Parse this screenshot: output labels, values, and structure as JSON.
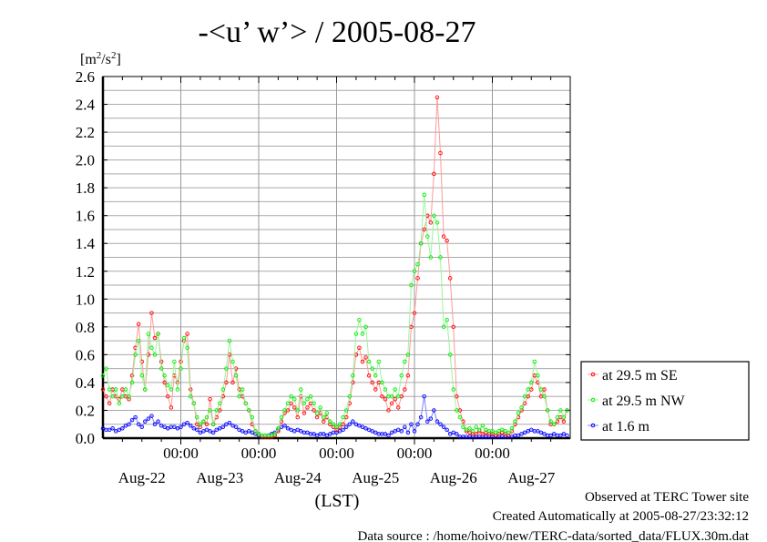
{
  "chart_data": {
    "type": "line",
    "title": "-<u’ w’> / 2005-08-27",
    "ylabel_base": "[m",
    "ylabel_sup1": "2",
    "ylabel_mid": "/s",
    "ylabel_sup2": "2",
    "ylabel_end": "]",
    "xlabel": "(LST)",
    "ylim": [
      0,
      2.6
    ],
    "yticks": [
      "0.0",
      "0.2",
      "0.4",
      "0.6",
      "0.8",
      "1.0",
      "1.2",
      "1.4",
      "1.6",
      "1.8",
      "2.0",
      "2.2",
      "2.4",
      "2.6"
    ],
    "x_time_labels": [
      "00:00",
      "00:00",
      "00:00",
      "00:00",
      "00:00"
    ],
    "x_day_labels": [
      "Aug-22",
      "Aug-23",
      "Aug-24",
      "Aug-25",
      "Aug-26",
      "Aug-27"
    ],
    "x_range_hours": [
      0,
      144
    ],
    "x_step_hours": 1,
    "grid": true,
    "legend_position": "right-bottom",
    "series": [
      {
        "name": "at 29.5 m SE",
        "color": "#ff0000",
        "values": [
          0.35,
          0.3,
          0.25,
          0.35,
          0.3,
          0.28,
          0.35,
          0.3,
          0.28,
          0.45,
          0.65,
          0.82,
          0.55,
          0.35,
          0.6,
          0.9,
          0.72,
          0.75,
          0.55,
          0.4,
          0.3,
          0.22,
          0.45,
          0.4,
          0.55,
          0.7,
          0.75,
          0.35,
          0.25,
          0.1,
          0.08,
          0.12,
          0.1,
          0.28,
          0.1,
          0.15,
          0.2,
          0.3,
          0.4,
          0.6,
          0.4,
          0.5,
          0.35,
          0.3,
          0.25,
          0.2,
          0.1,
          0.05,
          0.03,
          0.01,
          0.01,
          0.01,
          0.01,
          0.02,
          0.05,
          0.12,
          0.18,
          0.2,
          0.25,
          0.22,
          0.15,
          0.3,
          0.18,
          0.22,
          0.25,
          0.2,
          0.15,
          0.18,
          0.12,
          0.15,
          0.1,
          0.08,
          0.06,
          0.08,
          0.1,
          0.15,
          0.25,
          0.4,
          0.6,
          0.65,
          0.55,
          0.58,
          0.45,
          0.4,
          0.35,
          0.4,
          0.3,
          0.28,
          0.2,
          0.25,
          0.28,
          0.22,
          0.3,
          0.35,
          0.45,
          0.8,
          0.9,
          1.15,
          1.4,
          1.5,
          1.6,
          1.55,
          1.9,
          2.45,
          2.05,
          1.45,
          1.42,
          1.15,
          0.8,
          0.3,
          0.2,
          0.12,
          0.05,
          0.04,
          0.03,
          0.03,
          0.05,
          0.03,
          0.04,
          0.03,
          0.03,
          0.02,
          0.03,
          0.04,
          0.03,
          0.02,
          0.05,
          0.1,
          0.15,
          0.2,
          0.25,
          0.3,
          0.35,
          0.45,
          0.4,
          0.3,
          0.35,
          0.2,
          0.1,
          0.1,
          0.12,
          0.15,
          0.12,
          0.2
        ]
      },
      {
        "name": "at 29.5 m NW",
        "color": "#00ee00",
        "values": [
          0.45,
          0.5,
          0.35,
          0.3,
          0.35,
          0.25,
          0.3,
          0.35,
          0.3,
          0.4,
          0.6,
          0.7,
          0.45,
          0.35,
          0.75,
          0.65,
          0.6,
          0.75,
          0.5,
          0.45,
          0.38,
          0.35,
          0.55,
          0.35,
          0.5,
          0.72,
          0.65,
          0.3,
          0.25,
          0.15,
          0.1,
          0.12,
          0.15,
          0.2,
          0.1,
          0.2,
          0.25,
          0.35,
          0.5,
          0.7,
          0.55,
          0.45,
          0.3,
          0.35,
          0.25,
          0.2,
          0.15,
          0.05,
          0.03,
          0.02,
          0.02,
          0.02,
          0.02,
          0.03,
          0.07,
          0.15,
          0.2,
          0.25,
          0.3,
          0.28,
          0.2,
          0.35,
          0.25,
          0.28,
          0.3,
          0.25,
          0.18,
          0.22,
          0.15,
          0.18,
          0.12,
          0.1,
          0.08,
          0.1,
          0.15,
          0.2,
          0.3,
          0.45,
          0.75,
          0.85,
          0.75,
          0.8,
          0.55,
          0.5,
          0.45,
          0.55,
          0.4,
          0.35,
          0.3,
          0.3,
          0.35,
          0.3,
          0.45,
          0.55,
          0.6,
          1.1,
          1.2,
          1.25,
          1.4,
          1.75,
          1.45,
          1.3,
          1.6,
          1.55,
          1.3,
          0.8,
          0.85,
          0.6,
          0.35,
          0.2,
          0.15,
          0.08,
          0.06,
          0.07,
          0.05,
          0.08,
          0.06,
          0.09,
          0.06,
          0.05,
          0.05,
          0.04,
          0.05,
          0.06,
          0.05,
          0.04,
          0.07,
          0.12,
          0.18,
          0.22,
          0.3,
          0.35,
          0.4,
          0.55,
          0.45,
          0.35,
          0.3,
          0.2,
          0.12,
          0.1,
          0.15,
          0.2,
          0.15,
          0.2
        ]
      },
      {
        "name": "at 1.6 m",
        "color": "#0000ff",
        "values": [
          0.07,
          0.06,
          0.06,
          0.07,
          0.05,
          0.06,
          0.07,
          0.09,
          0.1,
          0.13,
          0.15,
          0.1,
          0.08,
          0.12,
          0.14,
          0.16,
          0.1,
          0.12,
          0.09,
          0.08,
          0.07,
          0.08,
          0.08,
          0.07,
          0.08,
          0.1,
          0.11,
          0.09,
          0.07,
          0.06,
          0.04,
          0.05,
          0.06,
          0.05,
          0.04,
          0.06,
          0.07,
          0.08,
          0.1,
          0.11,
          0.09,
          0.08,
          0.06,
          0.05,
          0.04,
          0.05,
          0.04,
          0.03,
          0.02,
          0.01,
          0.01,
          0.02,
          0.03,
          0.04,
          0.06,
          0.08,
          0.09,
          0.07,
          0.06,
          0.05,
          0.06,
          0.05,
          0.04,
          0.04,
          0.03,
          0.03,
          0.02,
          0.03,
          0.03,
          0.02,
          0.03,
          0.04,
          0.04,
          0.05,
          0.06,
          0.08,
          0.1,
          0.12,
          0.1,
          0.09,
          0.08,
          0.07,
          0.06,
          0.05,
          0.04,
          0.03,
          0.03,
          0.03,
          0.02,
          0.04,
          0.05,
          0.06,
          0.05,
          0.08,
          0.04,
          0.1,
          0.05,
          0.1,
          0.15,
          0.3,
          0.12,
          0.14,
          0.2,
          0.12,
          0.1,
          0.08,
          0.06,
          0.03,
          0.04,
          0.03,
          0.01,
          0.01,
          0.01,
          0.01,
          0.01,
          0.01,
          0.01,
          0.01,
          0.01,
          0.01,
          0.01,
          0.01,
          0.01,
          0.01,
          0.01,
          0.01,
          0.01,
          0.02,
          0.02,
          0.03,
          0.04,
          0.05,
          0.06,
          0.05,
          0.05,
          0.04,
          0.03,
          0.02,
          0.02,
          0.03,
          0.02,
          0.02,
          0.03,
          0.02
        ]
      }
    ]
  },
  "footer": {
    "observed": "Observed at TERC Tower site",
    "created": "Created Automatically at 2005-08-27/23:32:12",
    "source": "Data source : /home/hoivo/new/TERC-data/sorted_data/FLUX.30m.dat"
  }
}
